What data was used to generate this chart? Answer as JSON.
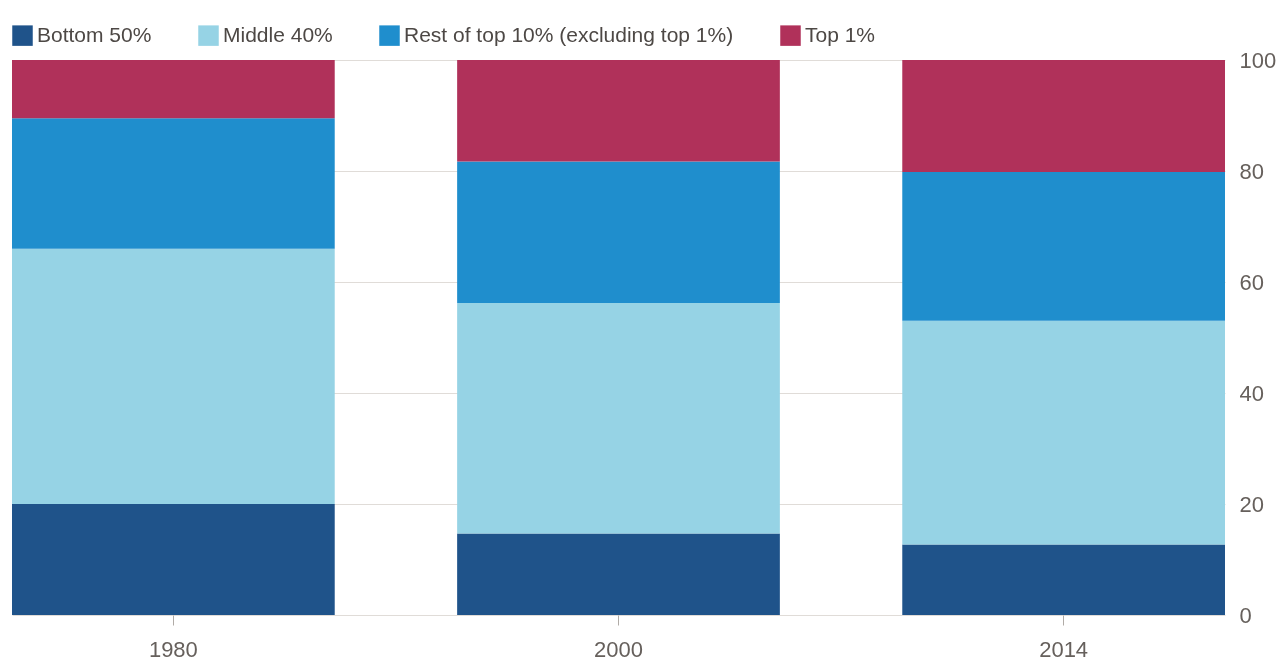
{
  "chart_data": {
    "type": "bar",
    "stacked": true,
    "categories": [
      "1980",
      "2000",
      "2014"
    ],
    "series": [
      {
        "name": "Bottom 50%",
        "color": "#1f538a",
        "values": [
          20,
          14.7,
          12.7
        ]
      },
      {
        "name": "Middle 40%",
        "color": "#96d3e5",
        "values": [
          46,
          41.5,
          40.3
        ]
      },
      {
        "name": "Rest of top 10% (excluding top 1%)",
        "color": "#1f8ecd",
        "values": [
          23.5,
          25.5,
          26.8
        ]
      },
      {
        "name": "Top 1%",
        "color": "#b0315a",
        "values": [
          10.5,
          18.3,
          20.2
        ]
      }
    ],
    "ylim": [
      0,
      100
    ],
    "yticks": [
      0,
      20,
      40,
      60,
      80,
      100
    ],
    "grid": "y",
    "legend": "top left"
  }
}
